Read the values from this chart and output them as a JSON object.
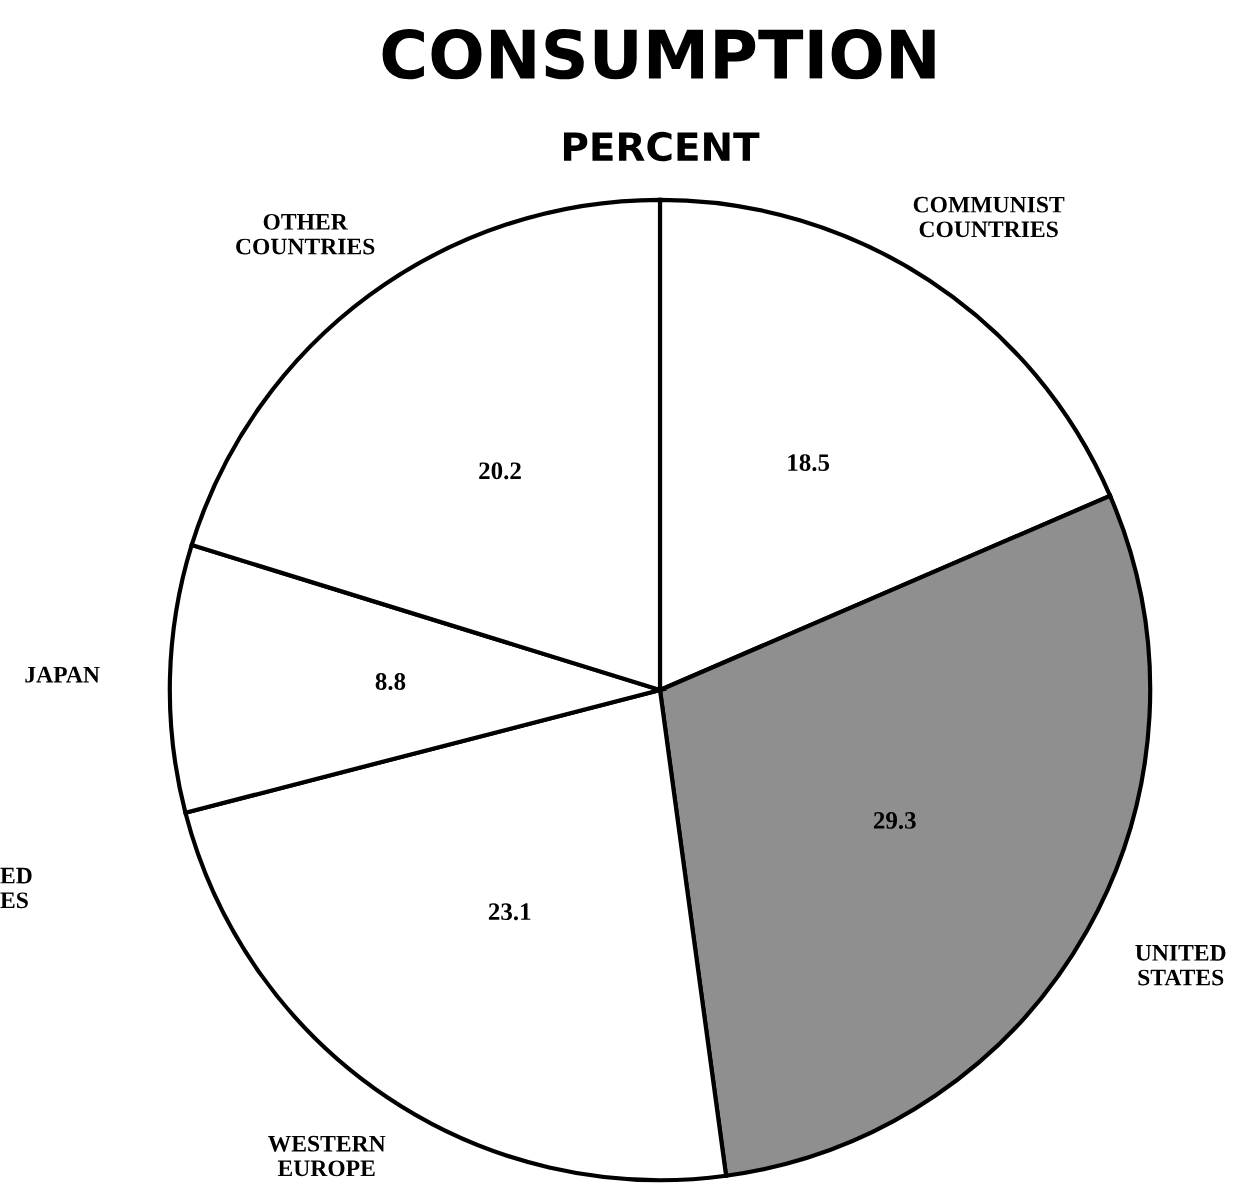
{
  "chart_data": {
    "type": "pie",
    "title": "CONSUMPTION",
    "subtitle": "PERCENT",
    "categories": [
      "COMMUNIST\nCOUNTRIES",
      "UNITED\nSTATES",
      "WESTERN\nEUROPE",
      "JAPAN",
      "OTHER\nCOUNTRIES"
    ],
    "values": [
      18.5,
      29.3,
      23.1,
      8.8,
      20.2
    ],
    "colors": [
      "#ffffff",
      "#8f8f8f",
      "#ffffff",
      "#ffffff",
      "#ffffff"
    ],
    "data_labels": true,
    "annotations": [
      "ED\nES"
    ]
  }
}
